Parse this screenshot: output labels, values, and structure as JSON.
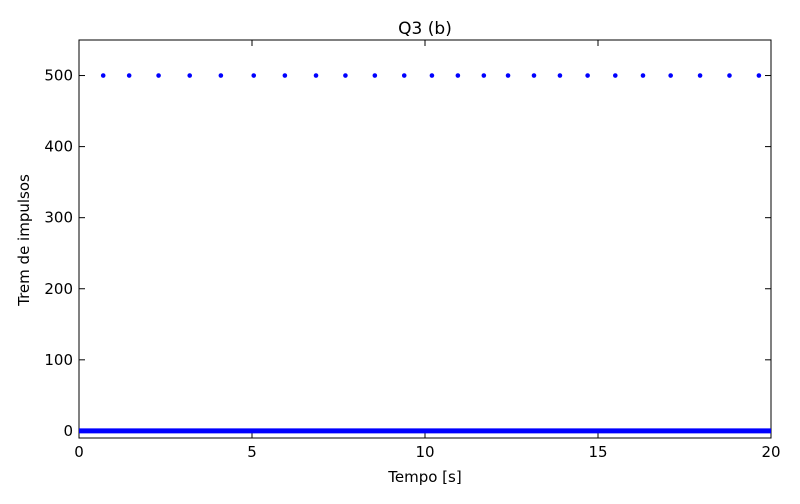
{
  "chart_data": {
    "type": "scatter",
    "title": "Q3 (b)",
    "xlabel": "Tempo [s]",
    "ylabel": "Trem de impulsos",
    "xlim": [
      0,
      20
    ],
    "ylim": [
      -10,
      550
    ],
    "xticks": [
      0,
      5,
      10,
      15,
      20
    ],
    "yticks": [
      0,
      100,
      200,
      300,
      400,
      500
    ],
    "grid": false,
    "series": [
      {
        "color": "#0000ff",
        "points": [
          [
            0.7,
            500
          ],
          [
            1.45,
            500
          ],
          [
            2.3,
            500
          ],
          [
            3.2,
            500
          ],
          [
            4.1,
            500
          ],
          [
            5.05,
            500
          ],
          [
            5.95,
            500
          ],
          [
            6.85,
            500
          ],
          [
            7.7,
            500
          ],
          [
            8.55,
            500
          ],
          [
            9.4,
            500
          ],
          [
            10.2,
            500
          ],
          [
            10.95,
            500
          ],
          [
            11.7,
            500
          ],
          [
            12.4,
            500
          ],
          [
            13.15,
            500
          ],
          [
            13.9,
            500
          ],
          [
            14.7,
            500
          ],
          [
            15.5,
            500
          ],
          [
            16.3,
            500
          ],
          [
            17.1,
            500
          ],
          [
            17.95,
            500
          ],
          [
            18.8,
            500
          ],
          [
            19.65,
            500
          ]
        ],
        "baseline": {
          "from": 0,
          "to": 20,
          "y": 0
        }
      }
    ]
  }
}
